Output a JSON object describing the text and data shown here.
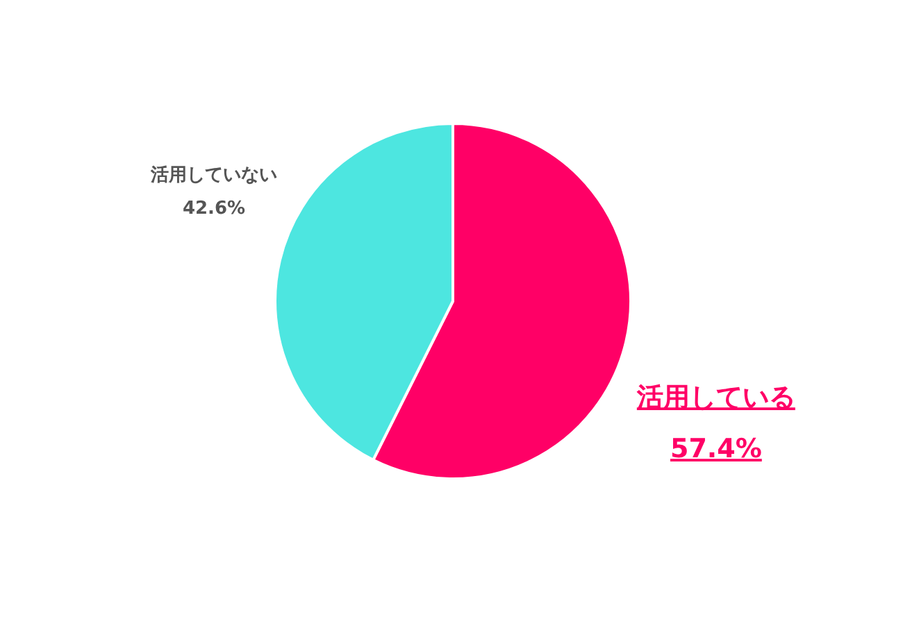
{
  "chart_data": {
    "type": "pie",
    "categories": [
      "活用している",
      "活用していない"
    ],
    "values": [
      57.4,
      42.6
    ],
    "colors": [
      "#ff0066",
      "#4de6e0"
    ],
    "value_labels": [
      "57.4%",
      "42.6%"
    ]
  }
}
